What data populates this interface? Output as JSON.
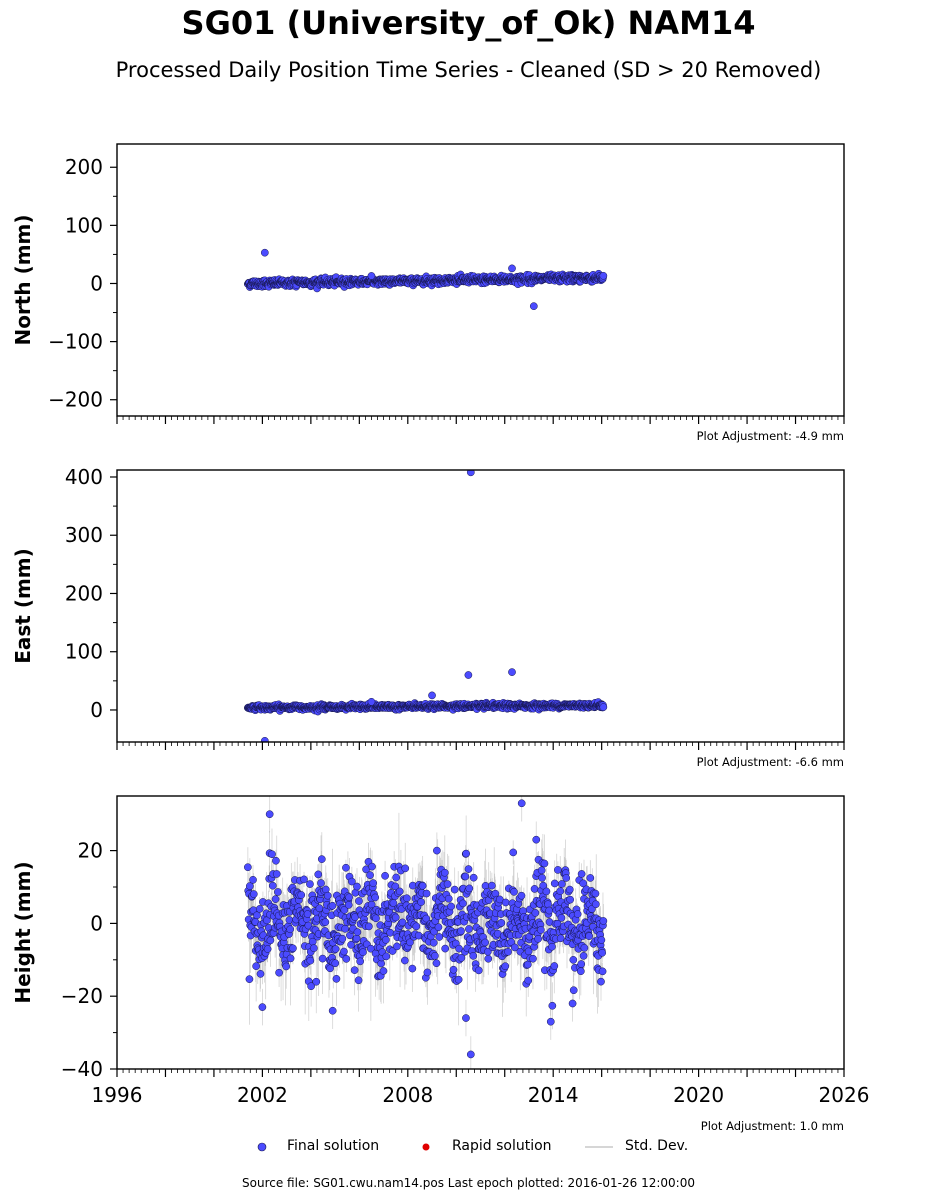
{
  "title": "SG01 (University_of_Ok) NAM14",
  "subtitle": "Processed Daily Position Time Series - Cleaned (SD > 20 Removed)",
  "footer": "Source file: SG01.cwu.nam14.pos  Last epoch plotted: 2016-01-26 12:00:00",
  "legend": {
    "final": "Final solution",
    "rapid": "Rapid solution",
    "std": "Std. Dev."
  },
  "colors": {
    "final": "#4b4bff",
    "final_edge": "#15154a",
    "rapid": "#e00000",
    "std": "#b0b0b0"
  },
  "chart_data": [
    {
      "type": "scatter",
      "ylabel": "North (mm)",
      "xlim": [
        1996,
        2026
      ],
      "ylim": [
        -228,
        240
      ],
      "yticks": [
        200,
        100,
        0,
        -100,
        -200
      ],
      "y_tick_labels": [
        "200",
        "100",
        "0",
        "−100",
        "−200"
      ],
      "adjustment": "Plot Adjustment: -4.9 mm",
      "data_start": 2001.4,
      "data_end": 2016.07,
      "trend": [
        0,
        10
      ],
      "noise": 3,
      "std_dev": 1.5,
      "outliers": [
        [
          2002.1,
          53
        ],
        [
          2012.3,
          26
        ],
        [
          2013.2,
          -39
        ],
        [
          2006.5,
          13
        ]
      ]
    },
    {
      "type": "scatter",
      "ylabel": "East (mm)",
      "xlim": [
        1996,
        2026
      ],
      "ylim": [
        -55,
        412
      ],
      "yticks": [
        400,
        300,
        200,
        100,
        0
      ],
      "y_tick_labels": [
        "400",
        "300",
        "200",
        "100",
        "0"
      ],
      "adjustment": "Plot Adjustment: -6.6 mm",
      "data_start": 2001.4,
      "data_end": 2016.07,
      "trend": [
        4,
        8
      ],
      "noise": 2,
      "std_dev": 1.5,
      "outliers": [
        [
          2010.6,
          408
        ],
        [
          2010.5,
          60
        ],
        [
          2012.3,
          65
        ],
        [
          2009.0,
          25
        ],
        [
          2002.1,
          -53
        ],
        [
          2006.5,
          14
        ]
      ]
    },
    {
      "type": "scatter",
      "ylabel": "Height (mm)",
      "xlim": [
        1996,
        2026
      ],
      "ylim": [
        -40,
        35
      ],
      "yticks": [
        20,
        0,
        -20,
        -40
      ],
      "y_tick_labels": [
        "20",
        "0",
        "−20",
        "−40"
      ],
      "xticks": [
        1996,
        2002,
        2008,
        2014,
        2020,
        2026
      ],
      "x_tick_labels": [
        "1996",
        "2002",
        "2008",
        "2014",
        "2020",
        "2026"
      ],
      "adjustment": "Plot Adjustment: 1.0 mm",
      "data_start": 2001.4,
      "data_end": 2016.07,
      "trend": [
        0,
        0
      ],
      "noise": 6,
      "seasonal_amplitude": 5,
      "std_dev": 5,
      "outliers": [
        [
          2012.7,
          33
        ],
        [
          2002.3,
          30
        ],
        [
          2010.6,
          -36
        ],
        [
          2002.0,
          -23
        ],
        [
          2010.4,
          -26
        ],
        [
          2013.9,
          -27
        ],
        [
          2004.9,
          -24
        ],
        [
          2013.3,
          23
        ],
        [
          2009.2,
          20
        ],
        [
          2014.8,
          -22
        ]
      ]
    }
  ]
}
